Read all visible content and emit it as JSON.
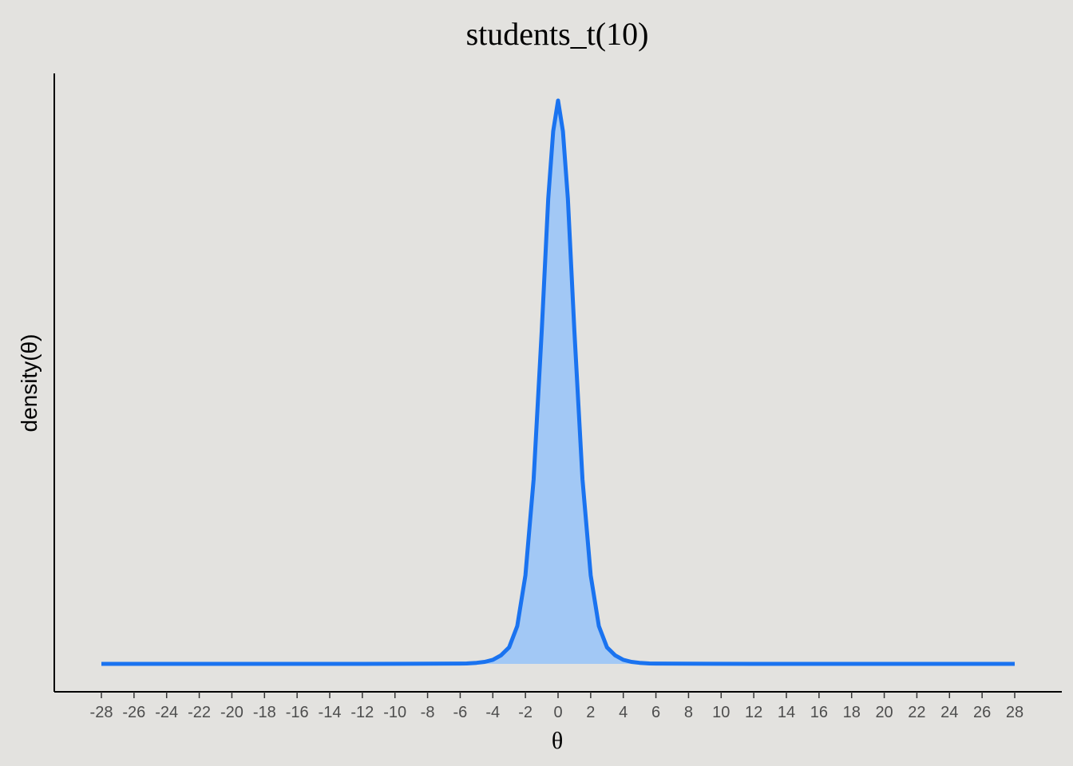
{
  "chart_data": {
    "type": "area",
    "title": "students_t(10)",
    "xlabel": "θ",
    "ylabel": "density(θ)",
    "xlim": [
      -28,
      28
    ],
    "ylim": [
      0,
      0.389
    ],
    "y_ticks_shown": false,
    "x_ticks": [
      -28,
      -26,
      -24,
      -22,
      -20,
      -18,
      -16,
      -14,
      -12,
      -10,
      -8,
      -6,
      -4,
      -2,
      0,
      2,
      4,
      6,
      8,
      10,
      12,
      14,
      16,
      18,
      20,
      22,
      24,
      26,
      28
    ],
    "x_tick_labels": [
      "-28",
      "-26",
      "-24",
      "-22",
      "-20",
      "-18",
      "-16",
      "-14",
      "-12",
      "-10",
      "-8",
      "-6",
      "-4",
      "-2",
      "0",
      "2",
      "4",
      "6",
      "8",
      "10",
      "12",
      "14",
      "16",
      "18",
      "20",
      "22",
      "24",
      "26",
      "28"
    ],
    "series": [
      {
        "x": [
          -28.0,
          -12.0,
          -6.0,
          -5.6,
          -5.0,
          -4.5,
          -4.0,
          -3.5,
          -3.0,
          -2.5,
          -2.0,
          -1.5,
          -1.0,
          -0.6,
          -0.3,
          0.0,
          0.3,
          0.6,
          1.0,
          1.5,
          2.0,
          2.5,
          3.0,
          3.5,
          4.0,
          4.5,
          5.0,
          5.6,
          6.0,
          12.0,
          28.0
        ],
        "y": [
          0.0,
          0.0,
          0.0002,
          0.0003,
          0.0007,
          0.0014,
          0.0028,
          0.0059,
          0.0114,
          0.0261,
          0.0611,
          0.1274,
          0.2304,
          0.3213,
          0.3678,
          0.389,
          0.3678,
          0.3213,
          0.2304,
          0.1274,
          0.0611,
          0.0261,
          0.0114,
          0.0059,
          0.0028,
          0.0014,
          0.0007,
          0.0003,
          0.0002,
          0.0,
          0.0
        ]
      }
    ],
    "colors": {
      "line": "#1a73f0",
      "fill": "#a2c8f5",
      "background": "#e3e2df",
      "axis": "#000000",
      "tick_label": "#4d4d4d"
    }
  }
}
